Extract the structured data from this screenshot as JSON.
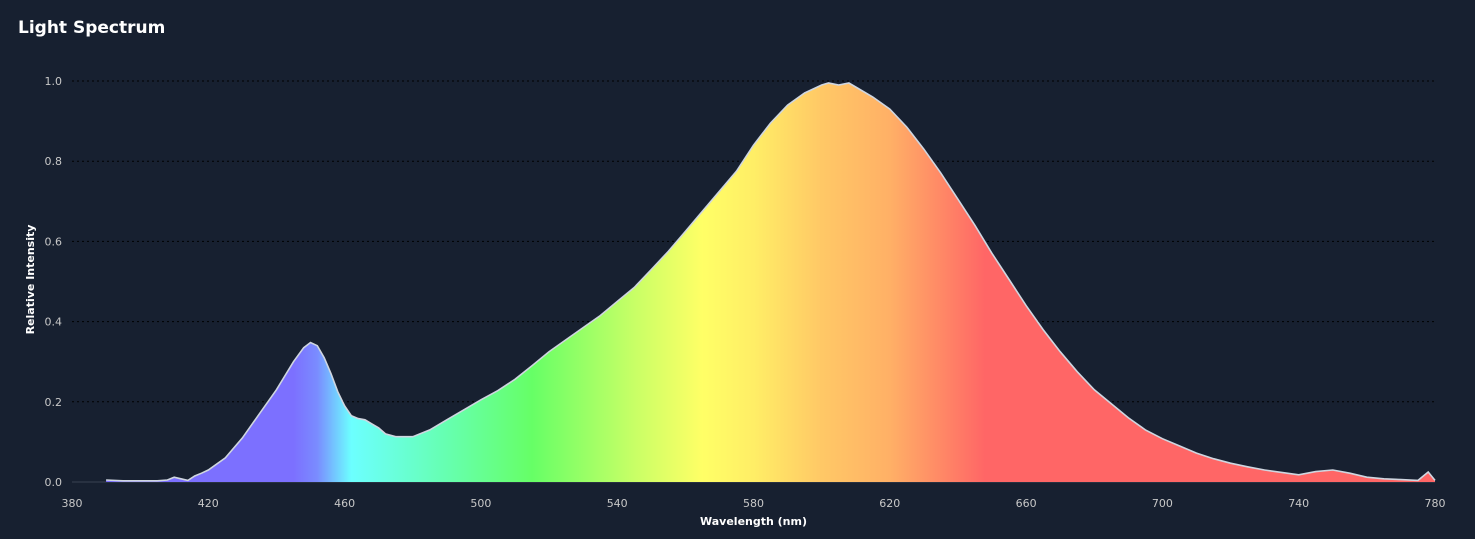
{
  "title": "Light Spectrum",
  "chart_data": {
    "type": "area",
    "title": "Light Spectrum",
    "xlabel": "Wavelength (nm)",
    "ylabel": "Relative Intensity",
    "xlim": [
      380,
      780
    ],
    "ylim": [
      0,
      1.0
    ],
    "x_ticks": [
      380,
      420,
      460,
      500,
      540,
      580,
      620,
      660,
      700,
      740,
      780
    ],
    "y_ticks": [
      0.0,
      0.2,
      0.4,
      0.6,
      0.8,
      1.0
    ],
    "y_tick_labels": [
      "0.0",
      "0.2",
      "0.4",
      "0.6",
      "0.8",
      "1.0"
    ],
    "grid": "horizontal dotted",
    "background_color": "#172030",
    "series": [
      {
        "x": [
          390,
          395,
          400,
          405,
          408,
          410,
          412,
          414,
          416,
          418,
          420,
          425,
          430,
          435,
          440,
          445,
          448,
          450,
          452,
          454,
          456,
          458,
          460,
          462,
          464,
          466,
          468,
          470,
          472,
          475,
          480,
          485,
          490,
          495,
          500,
          505,
          510,
          515,
          520,
          525,
          530,
          535,
          540,
          545,
          550,
          555,
          560,
          565,
          570,
          575,
          580,
          585,
          590,
          595,
          600,
          602,
          605,
          608,
          610,
          615,
          620,
          625,
          630,
          635,
          640,
          645,
          650,
          655,
          660,
          665,
          670,
          675,
          680,
          685,
          690,
          695,
          700,
          705,
          710,
          715,
          720,
          725,
          730,
          735,
          740,
          745,
          750,
          755,
          760,
          765,
          770,
          775,
          778,
          780
        ],
        "y": [
          0.005,
          0.003,
          0.003,
          0.003,
          0.005,
          0.012,
          0.008,
          0.004,
          0.015,
          0.022,
          0.03,
          0.06,
          0.11,
          0.17,
          0.23,
          0.3,
          0.335,
          0.348,
          0.34,
          0.31,
          0.27,
          0.225,
          0.19,
          0.165,
          0.158,
          0.155,
          0.145,
          0.135,
          0.12,
          0.113,
          0.113,
          0.13,
          0.155,
          0.18,
          0.205,
          0.228,
          0.256,
          0.29,
          0.325,
          0.355,
          0.385,
          0.415,
          0.45,
          0.485,
          0.53,
          0.575,
          0.625,
          0.675,
          0.725,
          0.775,
          0.84,
          0.895,
          0.94,
          0.97,
          0.99,
          0.995,
          0.99,
          0.995,
          0.985,
          0.96,
          0.93,
          0.885,
          0.83,
          0.77,
          0.705,
          0.64,
          0.57,
          0.505,
          0.44,
          0.38,
          0.325,
          0.275,
          0.23,
          0.195,
          0.16,
          0.13,
          0.108,
          0.09,
          0.072,
          0.058,
          0.047,
          0.038,
          0.03,
          0.024,
          0.018,
          0.026,
          0.03,
          0.022,
          0.012,
          0.008,
          0.006,
          0.004,
          0.025,
          0.004
        ]
      }
    ],
    "colors": {
      "violet": "#7c70ff",
      "blue": "#7a8cff",
      "cyan": "#6cffff",
      "green": "#66ff66",
      "yellow": "#ffff66",
      "orange": "#ffc866",
      "red": "#ff6666",
      "outline": "#cfd6e0"
    }
  }
}
